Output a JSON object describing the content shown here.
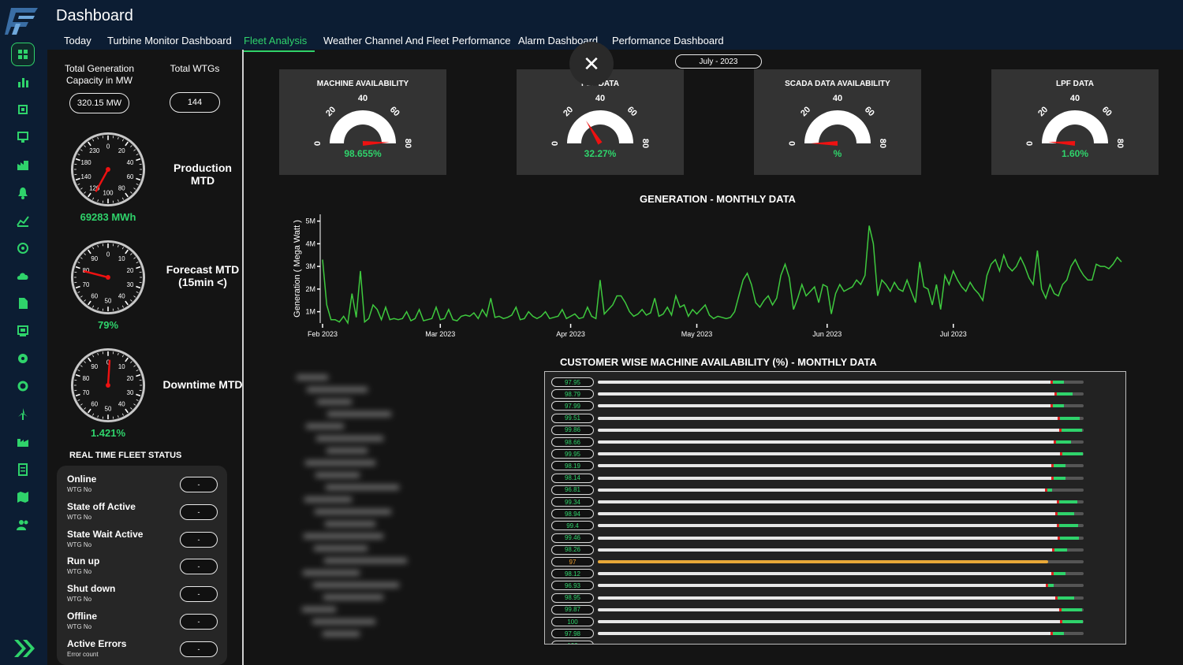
{
  "header": {
    "title": "Dashboard",
    "tabs": [
      "Today",
      "Turbine Monitor Dashboard",
      "Fleet Analysis",
      "Weather Channel And Fleet Performance",
      "Alarm Dashboard",
      "Performance Dashboard"
    ],
    "active_tab": "Fleet Analysis"
  },
  "sidebar": {
    "icons": [
      "grid-icon",
      "bar-chart-icon",
      "chip-icon",
      "monitor-icon",
      "factory-icon",
      "bell-icon",
      "analytics-icon",
      "settings-gear-icon",
      "cloud-icon",
      "document-icon",
      "report-icon",
      "gear-icon",
      "cog-icon",
      "wind-turbine-icon",
      "industry-icon",
      "log-icon",
      "map-icon",
      "users-icon"
    ],
    "expand_icon": "double-chevron-right-icon",
    "accent": "#2fd36b"
  },
  "summary": {
    "capacity_label": "Total Generation Capacity in MW",
    "capacity_value": "320.15 MW",
    "wtg_label": "Total WTGs",
    "wtg_value": "144"
  },
  "mtd": [
    {
      "label": "Production MTD",
      "value": "69283 MWh",
      "ticks": [
        "0",
        "20",
        "40",
        "60",
        "80",
        "100",
        "120",
        "140",
        "180",
        "230"
      ],
      "needle_fraction": 0.58
    },
    {
      "label": "Forecast MTD (15min <)",
      "value": "79%",
      "ticks": [
        "0",
        "10",
        "20",
        "30",
        "40",
        "50",
        "60",
        "70",
        "80",
        "90"
      ],
      "needle_fraction": 0.79
    },
    {
      "label": "Downtime MTD",
      "value": "1.421%",
      "ticks": [
        "0",
        "10",
        "20",
        "30",
        "40",
        "50",
        "60",
        "70",
        "80",
        "90"
      ],
      "needle_fraction": 0.01
    }
  ],
  "fleet_status": {
    "title": "REAL TIME FLEET STATUS",
    "rows": [
      {
        "name": "Online",
        "sub": "WTG No",
        "value": "-"
      },
      {
        "name": "State off Active",
        "sub": "WTG No",
        "value": "-"
      },
      {
        "name": "State Wait Active",
        "sub": "WTG No",
        "value": "-"
      },
      {
        "name": "Run up",
        "sub": "WTG No",
        "value": "-"
      },
      {
        "name": "Shut down",
        "sub": "WTG No",
        "value": "-"
      },
      {
        "name": "Offline",
        "sub": "WTG No",
        "value": "-"
      },
      {
        "name": "Active Errors",
        "sub": "Error count",
        "value": "-"
      }
    ]
  },
  "month_selector": "July - 2023",
  "close_icon": "close-icon",
  "gauges": [
    {
      "title": "MACHINE AVAILABILITY",
      "value": "98.655%",
      "percent": 98.655
    },
    {
      "title": "PLF DATA",
      "value": "32.27%",
      "percent": 32.27
    },
    {
      "title": "SCADA DATA AVAILABILITY",
      "value": "%",
      "percent": 0
    },
    {
      "title": "LPF DATA",
      "value": "1.60%",
      "percent": 1.6
    }
  ],
  "gauge_ticks": [
    "0",
    "20",
    "40",
    "60",
    "80"
  ],
  "chart_data": {
    "type": "line",
    "title": "GENERATION - MONTHLY DATA",
    "ylabel": "Generation ( Mega Watt )",
    "xlabel": "",
    "yticks": [
      "1M",
      "2M",
      "3M",
      "4M",
      "5M"
    ],
    "ylim": [
      500000,
      5300000
    ],
    "x_tick_labels": [
      "Feb 2023",
      "Mar 2023",
      "Apr 2023",
      "May 2023",
      "Jun 2023",
      "Jul 2023"
    ],
    "x_start": "2023-02-01",
    "series": [
      {
        "color": "#3ec93e",
        "values": [
          3300000,
          1300000,
          650000,
          650000,
          550000,
          800000,
          500000,
          1800000,
          750000,
          2800000,
          550000,
          700000,
          1300000,
          1100000,
          650000,
          1200000,
          650000,
          700000,
          650000,
          700000,
          1000000,
          600000,
          700000,
          1100000,
          600000,
          650000,
          700000,
          1200000,
          650000,
          700000,
          1100000,
          650000,
          600000,
          800000,
          850000,
          800000,
          950000,
          700000,
          1100000,
          800000,
          1600000,
          750000,
          800000,
          700000,
          750000,
          850000,
          1200000,
          650000,
          700000,
          1000000,
          800000,
          700000,
          800000,
          1000000,
          700000,
          750000,
          800000,
          1100000,
          700000,
          800000,
          900000,
          700000,
          750000,
          1200000,
          800000,
          700000,
          2400000,
          900000,
          1100000,
          1300000,
          1700000,
          1700000,
          1400000,
          1000000,
          800000,
          900000,
          1100000,
          850000,
          950000,
          1600000,
          800000,
          900000,
          1200000,
          850000,
          1700000,
          1200000,
          1300000,
          800000,
          1100000,
          900000,
          1100000,
          1300000,
          850000,
          700000,
          800000,
          750000,
          700000,
          750000,
          1000000,
          1700000,
          2400000,
          2700000,
          2200000,
          1400000,
          1200000,
          1500000,
          1700000,
          1300000,
          1600000,
          2600000,
          3100000,
          2500000,
          1100000,
          1600000,
          2200000,
          1700000,
          1900000,
          2100000,
          1400000,
          2200000,
          2100000,
          900000,
          1800000,
          2200000,
          1900000,
          2000000,
          2100000,
          2400000,
          2200000,
          2600000,
          4800000,
          4000000,
          1700000,
          2400000,
          2200000,
          1900000,
          2300000,
          2000000,
          1900000,
          2400000,
          1900000,
          1400000,
          3200000,
          2100000,
          2000000,
          1300000,
          2200000,
          1100000,
          2600000,
          2200000,
          2800000,
          2400000,
          2100000,
          1900000,
          2300000,
          2000000,
          1800000,
          1500000,
          2600000,
          3100000,
          3300000,
          2800000,
          3500000,
          3000000,
          2800000,
          3000000,
          3400000,
          3000000,
          2500000,
          2200000,
          3700000,
          2000000,
          1600000,
          2200000,
          1800000,
          1700000,
          2200000,
          2400000,
          3000000,
          3300000,
          2900000,
          2600000,
          2400000,
          2400000,
          3100000,
          3000000,
          3000000,
          2900000,
          3100000,
          3400000,
          3200000
        ]
      }
    ]
  },
  "availability": {
    "title": "CUSTOMER WISE MACHINE AVAILABILITY (%) - MONTHLY DATA",
    "rows": [
      {
        "value": "97.95",
        "percent": 97.95
      },
      {
        "value": "98.79",
        "percent": 98.79
      },
      {
        "value": "97.99",
        "percent": 97.99
      },
      {
        "value": "99.51",
        "percent": 99.51
      },
      {
        "value": "99.86",
        "percent": 99.86
      },
      {
        "value": "98.66",
        "percent": 98.66
      },
      {
        "value": "99.95",
        "percent": 99.95
      },
      {
        "value": "98.19",
        "percent": 98.19
      },
      {
        "value": "98.14",
        "percent": 98.14
      },
      {
        "value": "96.81",
        "percent": 96.81
      },
      {
        "value": "99.34",
        "percent": 99.34
      },
      {
        "value": "98.94",
        "percent": 98.94
      },
      {
        "value": "99.4",
        "percent": 99.4
      },
      {
        "value": "99.46",
        "percent": 99.46
      },
      {
        "value": "98.26",
        "percent": 98.26
      },
      {
        "value": "97",
        "percent": 97,
        "highlight": true
      },
      {
        "value": "98.12",
        "percent": 98.12
      },
      {
        "value": "96.93",
        "percent": 96.93
      },
      {
        "value": "98.95",
        "percent": 98.95
      },
      {
        "value": "99.87",
        "percent": 99.87
      },
      {
        "value": "100",
        "percent": 100
      },
      {
        "value": "97.98",
        "percent": 97.98
      },
      {
        "value": "100",
        "percent": 100
      }
    ]
  }
}
